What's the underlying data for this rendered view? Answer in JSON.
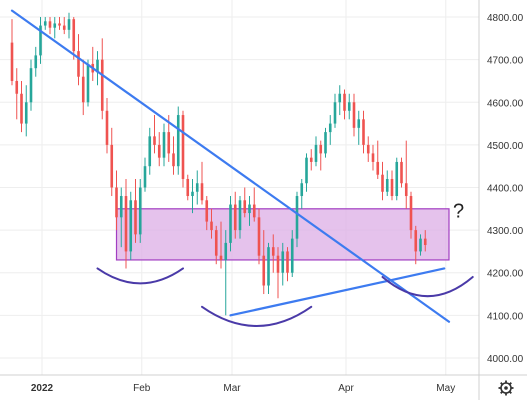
{
  "chart_data": {
    "type": "candlestick",
    "title": "",
    "xlabel": "",
    "ylabel": "",
    "ylim": [
      3960,
      4840
    ],
    "y_ticks": [
      4000,
      4100,
      4200,
      4300,
      4400,
      4500,
      4600,
      4700,
      4800
    ],
    "y_tick_labels": [
      "4000.00",
      "4100.00",
      "4200.00",
      "4300.00",
      "4400.00",
      "4500.00",
      "4600.00",
      "4700.00",
      "4800.00"
    ],
    "x_tick_labels": [
      "2022",
      "Feb",
      "Mar",
      "Apr",
      "May"
    ],
    "grid": true,
    "colors": {
      "up": "#26a69a",
      "down": "#ef5350",
      "trendline": "#3d7bf0",
      "zone_fill": "#dcaee6",
      "zone_border": "#a23ec2",
      "arcs": "#4a3aa8"
    },
    "candles": [
      [
        4740,
        4795,
        4640,
        4650
      ],
      [
        4650,
        4680,
        4560,
        4620
      ],
      [
        4620,
        4650,
        4530,
        4550
      ],
      [
        4550,
        4640,
        4520,
        4600
      ],
      [
        4600,
        4700,
        4580,
        4680
      ],
      [
        4680,
        4730,
        4660,
        4710
      ],
      [
        4710,
        4800,
        4690,
        4780
      ],
      [
        4780,
        4800,
        4770,
        4790
      ],
      [
        4790,
        4800,
        4760,
        4775
      ],
      [
        4775,
        4800,
        4750,
        4785
      ],
      [
        4785,
        4800,
        4770,
        4780
      ],
      [
        4780,
        4800,
        4760,
        4770
      ],
      [
        4770,
        4810,
        4750,
        4795
      ],
      [
        4795,
        4800,
        4700,
        4720
      ],
      [
        4720,
        4760,
        4640,
        4660
      ],
      [
        4660,
        4700,
        4570,
        4600
      ],
      [
        4600,
        4700,
        4590,
        4690
      ],
      [
        4690,
        4730,
        4650,
        4670
      ],
      [
        4670,
        4720,
        4640,
        4700
      ],
      [
        4700,
        4750,
        4560,
        4580
      ],
      [
        4580,
        4610,
        4480,
        4500
      ],
      [
        4500,
        4540,
        4380,
        4400
      ],
      [
        4400,
        4440,
        4300,
        4330
      ],
      [
        4330,
        4400,
        4260,
        4380
      ],
      [
        4380,
        4420,
        4210,
        4250
      ],
      [
        4250,
        4390,
        4230,
        4370
      ],
      [
        4370,
        4420,
        4270,
        4290
      ],
      [
        4290,
        4420,
        4270,
        4400
      ],
      [
        4400,
        4470,
        4390,
        4450
      ],
      [
        4450,
        4540,
        4430,
        4520
      ],
      [
        4520,
        4570,
        4480,
        4500
      ],
      [
        4500,
        4530,
        4450,
        4470
      ],
      [
        4470,
        4550,
        4450,
        4530
      ],
      [
        4530,
        4570,
        4460,
        4480
      ],
      [
        4480,
        4520,
        4430,
        4450
      ],
      [
        4450,
        4590,
        4430,
        4570
      ],
      [
        4570,
        4580,
        4400,
        4420
      ],
      [
        4420,
        4430,
        4370,
        4380
      ],
      [
        4380,
        4420,
        4340,
        4390
      ],
      [
        4390,
        4440,
        4360,
        4410
      ],
      [
        4410,
        4460,
        4360,
        4370
      ],
      [
        4370,
        4380,
        4300,
        4320
      ],
      [
        4320,
        4350,
        4280,
        4300
      ],
      [
        4300,
        4310,
        4220,
        4240
      ],
      [
        4240,
        4320,
        4210,
        4230
      ],
      [
        4230,
        4300,
        4100,
        4270
      ],
      [
        4270,
        4380,
        4250,
        4360
      ],
      [
        4360,
        4390,
        4280,
        4300
      ],
      [
        4300,
        4380,
        4280,
        4370
      ],
      [
        4370,
        4400,
        4330,
        4340
      ],
      [
        4340,
        4380,
        4310,
        4360
      ],
      [
        4360,
        4400,
        4320,
        4330
      ],
      [
        4330,
        4350,
        4220,
        4240
      ],
      [
        4240,
        4300,
        4150,
        4170
      ],
      [
        4170,
        4270,
        4150,
        4260
      ],
      [
        4260,
        4290,
        4200,
        4240
      ],
      [
        4240,
        4260,
        4140,
        4200
      ],
      [
        4200,
        4270,
        4170,
        4250
      ],
      [
        4250,
        4260,
        4180,
        4200
      ],
      [
        4200,
        4300,
        4190,
        4280
      ],
      [
        4280,
        4390,
        4260,
        4380
      ],
      [
        4380,
        4420,
        4350,
        4410
      ],
      [
        4410,
        4480,
        4390,
        4470
      ],
      [
        4470,
        4490,
        4440,
        4460
      ],
      [
        4460,
        4520,
        4450,
        4500
      ],
      [
        4500,
        4510,
        4440,
        4480
      ],
      [
        4480,
        4540,
        4470,
        4530
      ],
      [
        4530,
        4570,
        4500,
        4550
      ],
      [
        4550,
        4620,
        4540,
        4600
      ],
      [
        4600,
        4640,
        4570,
        4620
      ],
      [
        4620,
        4630,
        4560,
        4580
      ],
      [
        4580,
        4620,
        4560,
        4600
      ],
      [
        4600,
        4620,
        4520,
        4540
      ],
      [
        4540,
        4580,
        4500,
        4560
      ],
      [
        4560,
        4580,
        4480,
        4500
      ],
      [
        4500,
        4520,
        4460,
        4480
      ],
      [
        4480,
        4500,
        4440,
        4460
      ],
      [
        4460,
        4510,
        4420,
        4430
      ],
      [
        4430,
        4460,
        4370,
        4390
      ],
      [
        4390,
        4440,
        4380,
        4420
      ],
      [
        4420,
        4440,
        4370,
        4380
      ],
      [
        4380,
        4470,
        4370,
        4460
      ],
      [
        4460,
        4470,
        4400,
        4410
      ],
      [
        4410,
        4510,
        4350,
        4380
      ],
      [
        4380,
        4390,
        4280,
        4300
      ],
      [
        4300,
        4310,
        4220,
        4250
      ],
      [
        4250,
        4290,
        4240,
        4280
      ],
      [
        4280,
        4300,
        4250,
        4265
      ]
    ],
    "trendlines": [
      {
        "name": "falling-trendline",
        "from": [
          0,
          4815
        ],
        "to": [
          92,
          4085
        ]
      },
      {
        "name": "rising-support-line",
        "from": [
          46,
          4100
        ],
        "to": [
          91,
          4210
        ]
      }
    ],
    "zone": {
      "y_low": 4230,
      "y_high": 4350,
      "x_from": 22,
      "x_to": 92
    },
    "arcs": [
      {
        "name": "arc-left",
        "x_from": 18,
        "x_to": 36,
        "y_edge": 4210,
        "depth": 35
      },
      {
        "name": "arc-middle",
        "x_from": 40,
        "x_to": 63,
        "y_edge": 4120,
        "depth": 45
      },
      {
        "name": "arc-right",
        "x_from": 78,
        "x_to": 97,
        "y_edge": 4190,
        "depth": 45
      }
    ],
    "annotations": [
      {
        "text": "?",
        "x": 94,
        "y": 4330
      }
    ]
  }
}
